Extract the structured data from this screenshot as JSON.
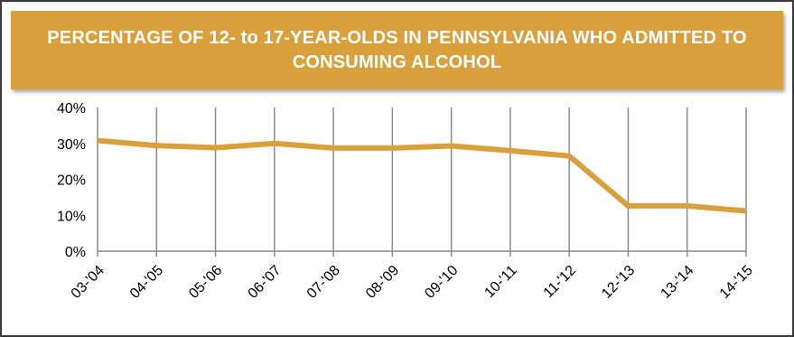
{
  "chart_data": {
    "type": "line",
    "title": "PERCENTAGE OF 12- to 17-YEAR-OLDS IN PENNSYLVANIA WHO ADMITTED TO CONSUMING ALCOHOL",
    "categories": [
      "03-'04",
      "04-'05",
      "05-'06",
      "06-'07",
      "07-'08",
      "08-'09",
      "09-'10",
      "10-'11",
      "11-'12",
      "12-'13",
      "13-'14",
      "14-'15"
    ],
    "series": [
      {
        "values": [
          30.8,
          29.4,
          28.8,
          30.0,
          28.7,
          28.7,
          29.3,
          28.0,
          26.5,
          12.6,
          12.6,
          11.2
        ]
      }
    ],
    "y_ticks": [
      "0%",
      "10%",
      "20%",
      "30%",
      "40%"
    ],
    "ylim": [
      0,
      40
    ],
    "grid": "vertical",
    "legend": "none",
    "line_color": "#d9a03c"
  }
}
